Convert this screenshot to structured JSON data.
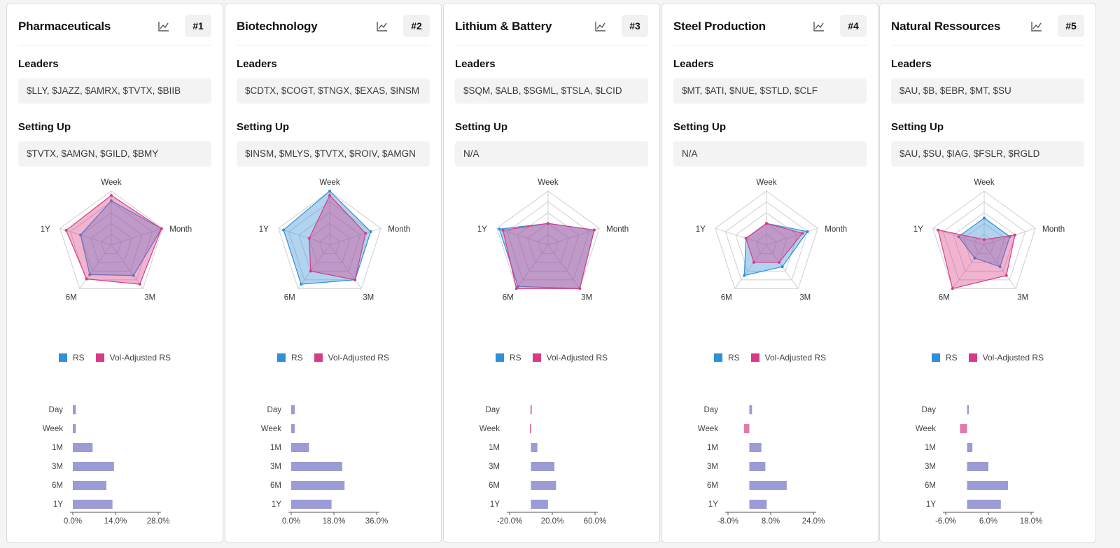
{
  "legend": {
    "rs_label": "RS",
    "vol_label": "Vol-Adjusted RS"
  },
  "colors": {
    "rs": "#2f8fd8",
    "vol": "#d83b86",
    "overlap": "#9b9bd6",
    "negative": "#e07aa8",
    "grid": "#cfcfd3"
  },
  "section_labels": {
    "leaders": "Leaders",
    "setting_up": "Setting Up"
  },
  "cards": [
    {
      "title": "Pharmaceuticals",
      "rank": "#1",
      "leaders": "$LLY, $JAZZ, $AMRX, $TVTX, $BIIB",
      "setting_up": "$TVTX, $AMGN, $GILD, $BMY",
      "chart_data": {
        "type": "radar",
        "axes": [
          "Week",
          "Month",
          "3M",
          "6M",
          "1Y"
        ],
        "series": [
          {
            "name": "RS",
            "values": [
              0.82,
              0.98,
              0.7,
              0.68,
              0.6
            ]
          },
          {
            "name": "Vol-Adjusted RS",
            "values": [
              0.92,
              0.98,
              0.9,
              0.78,
              0.88
            ]
          }
        ],
        "bars": {
          "type": "bar",
          "categories": [
            "Day",
            "Week",
            "1M",
            "3M",
            "6M",
            "1Y"
          ],
          "values": [
            1.0,
            1.0,
            6.5,
            13.5,
            11.0,
            13.0
          ],
          "xlim": [
            0,
            28
          ],
          "ticks": [
            "0.0%",
            "14.0%",
            "28.0%"
          ]
        }
      }
    },
    {
      "title": "Biotechnology",
      "rank": "#2",
      "leaders": "$CDTX, $COGT, $TNGX, $EXAS, $INSM",
      "setting_up": "$INSM, $MLYS, $TVTX, $ROIV, $AMGN",
      "chart_data": {
        "type": "radar",
        "axes": [
          "Week",
          "Month",
          "3M",
          "6M",
          "1Y"
        ],
        "series": [
          {
            "name": "RS",
            "values": [
              1.0,
              0.8,
              0.8,
              0.9,
              0.9
            ]
          },
          {
            "name": "Vol-Adjusted RS",
            "values": [
              0.92,
              0.7,
              0.8,
              0.6,
              0.4
            ]
          }
        ],
        "bars": {
          "type": "bar",
          "categories": [
            "Day",
            "Week",
            "1M",
            "3M",
            "6M",
            "1Y"
          ],
          "values": [
            1.5,
            1.5,
            7.5,
            21.5,
            22.5,
            17.0
          ],
          "xlim": [
            0,
            36
          ],
          "ticks": [
            "0.0%",
            "18.0%",
            "36.0%"
          ]
        }
      }
    },
    {
      "title": "Lithium & Battery",
      "rank": "#3",
      "leaders": "$SQM, $ALB, $SGML, $TSLA, $LCID",
      "setting_up": "N/A",
      "chart_data": {
        "type": "radar",
        "axes": [
          "Week",
          "Month",
          "3M",
          "6M",
          "1Y"
        ],
        "series": [
          {
            "name": "RS",
            "values": [
              0.4,
              0.9,
              1.0,
              0.95,
              0.95
            ]
          },
          {
            "name": "Vol-Adjusted RS",
            "values": [
              0.4,
              0.9,
              1.0,
              1.0,
              0.88
            ]
          }
        ],
        "bars": {
          "type": "bar",
          "categories": [
            "Day",
            "Week",
            "1M",
            "3M",
            "6M",
            "1Y"
          ],
          "values": [
            -0.5,
            -1.0,
            6.0,
            22.0,
            23.5,
            16.0
          ],
          "xlim": [
            -20,
            60
          ],
          "ticks": [
            "-20.0%",
            "20.0%",
            "60.0%"
          ]
        }
      }
    },
    {
      "title": "Steel Production",
      "rank": "#4",
      "leaders": "$MT, $ATI, $NUE, $STLD, $CLF",
      "setting_up": "N/A",
      "chart_data": {
        "type": "radar",
        "axes": [
          "Week",
          "Month",
          "3M",
          "6M",
          "1Y"
        ],
        "series": [
          {
            "name": "RS",
            "values": [
              0.4,
              0.8,
              0.5,
              0.7,
              0.4
            ]
          },
          {
            "name": "Vol-Adjusted RS",
            "values": [
              0.4,
              0.7,
              0.4,
              0.4,
              0.4
            ]
          }
        ],
        "bars": {
          "type": "bar",
          "categories": [
            "Day",
            "Week",
            "1M",
            "3M",
            "6M",
            "1Y"
          ],
          "values": [
            1.0,
            -2.0,
            4.5,
            6.0,
            14.0,
            6.5
          ],
          "xlim": [
            -8,
            24
          ],
          "ticks": [
            "-8.0%",
            "8.0%",
            "24.0%"
          ]
        }
      }
    },
    {
      "title": "Natural Ressources",
      "rank": "#5",
      "leaders": "$AU, $B, $EBR, $MT, $SU",
      "setting_up": "$AU, $SU, $IAG, $FSLR, $RGLD",
      "chart_data": {
        "type": "radar",
        "axes": [
          "Week",
          "Month",
          "3M",
          "6M",
          "1Y"
        ],
        "series": [
          {
            "name": "RS",
            "values": [
              0.5,
              0.5,
              0.5,
              0.3,
              0.5
            ]
          },
          {
            "name": "Vol-Adjusted RS",
            "values": [
              0.1,
              0.6,
              0.7,
              1.0,
              0.9
            ]
          }
        ],
        "bars": {
          "type": "bar",
          "categories": [
            "Day",
            "Week",
            "1M",
            "3M",
            "6M",
            "1Y"
          ],
          "values": [
            0.5,
            -2.0,
            1.5,
            6.0,
            11.5,
            9.5
          ],
          "xlim": [
            -6,
            18
          ],
          "ticks": [
            "-6.0%",
            "6.0%",
            "18.0%"
          ]
        }
      }
    }
  ]
}
